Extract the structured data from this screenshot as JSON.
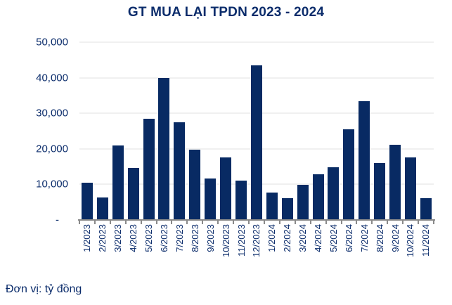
{
  "title": "GT MUA LẠI TPDN 2023 - 2024",
  "footer": "Đơn vị: tỷ đồng",
  "colors": {
    "bar": "#082a63",
    "text": "#0b2c6b",
    "gridline": "#f0f0f0",
    "axis": "#8a8a8a"
  },
  "y_axis": {
    "tick_labels": [
      "50,000",
      "40,000",
      "30,000",
      "20,000",
      "10,000",
      "-"
    ],
    "max": 50000
  },
  "chart_data": {
    "type": "bar",
    "title": "GT MUA LẠI TPDN 2023 - 2024",
    "unit_note": "Đơn vị: tỷ đồng",
    "categories": [
      "1/2023",
      "2/2023",
      "3/2023",
      "4/2023",
      "5/2023",
      "6/2023",
      "7/2023",
      "8/2023",
      "9/2023",
      "10/2023",
      "11/2023",
      "12/2023",
      "1/2024",
      "2/2024",
      "3/2024",
      "4/2024",
      "5/2024",
      "6/2024",
      "7/2024",
      "8/2024",
      "9/2024",
      "10/2024",
      "11/2024"
    ],
    "values": [
      10400,
      6300,
      20900,
      14700,
      28400,
      40000,
      27500,
      19800,
      11600,
      17500,
      11000,
      43400,
      7800,
      6100,
      9900,
      12800,
      14900,
      25500,
      33500,
      16000,
      21200,
      17600,
      6200
    ],
    "xlabel": "",
    "ylabel": "",
    "ylim": [
      0,
      50000
    ],
    "y_ticks": [
      0,
      10000,
      20000,
      30000,
      40000,
      50000
    ],
    "grid": true,
    "legend": false,
    "bar_color": "#082a63"
  }
}
